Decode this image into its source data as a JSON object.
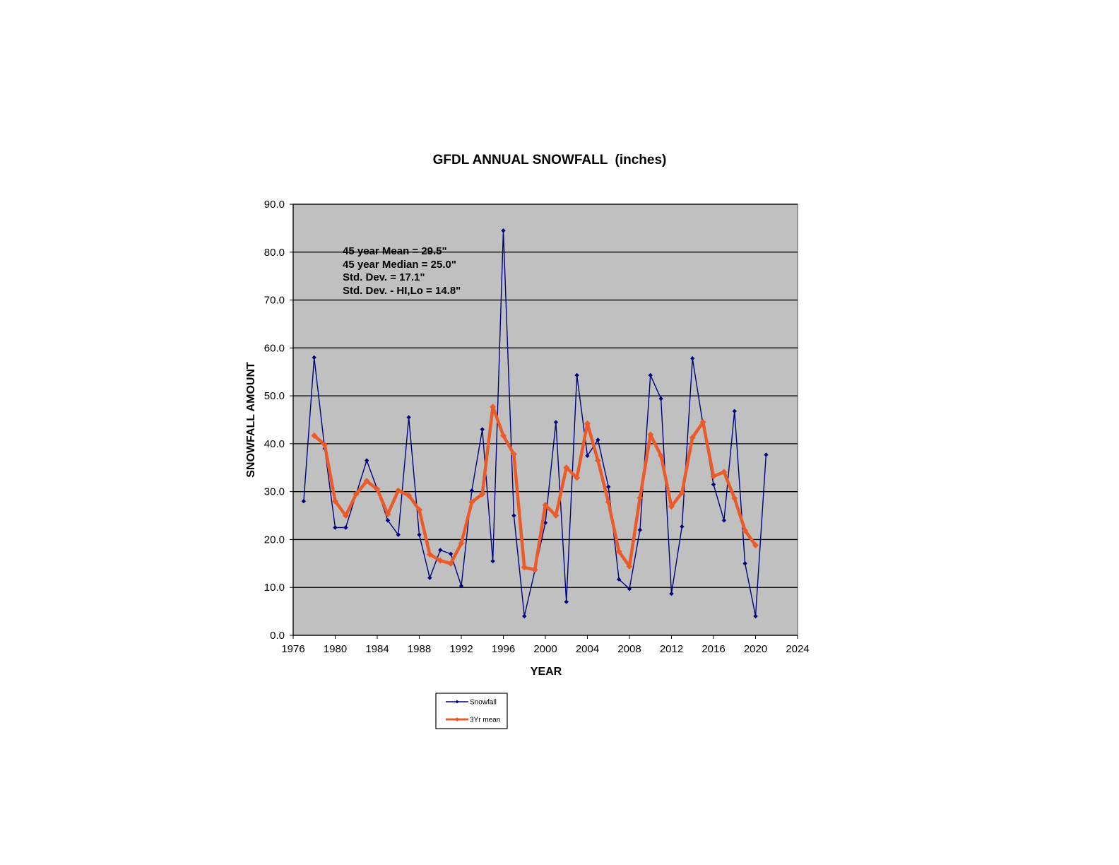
{
  "chart_data": {
    "type": "line",
    "title": "GFDL ANNUAL SNOWFALL  (inches)",
    "xlabel": "YEAR",
    "ylabel": "SNOWFALL AMOUNT",
    "xlim": [
      1976,
      2024
    ],
    "ylim": [
      0,
      90
    ],
    "x_ticks": [
      "1976",
      "1980",
      "1984",
      "1988",
      "1992",
      "1996",
      "2000",
      "2004",
      "2008",
      "2012",
      "2016",
      "2020",
      "2024"
    ],
    "y_ticks": [
      "0.0",
      "10.0",
      "20.0",
      "30.0",
      "40.0",
      "50.0",
      "60.0",
      "70.0",
      "80.0",
      "90.0"
    ],
    "grid": "horizontal",
    "plot_background": "#c0c0c0",
    "legend_position": "bottom-center",
    "annotations": [
      "45 year Mean = 29.5\"",
      "45 year Median = 25.0\"",
      "Std. Dev. = 17.1\"",
      "Std. Dev. - HI,Lo = 14.8\""
    ],
    "series": [
      {
        "name": "Snowfall",
        "color": "#000080",
        "x": [
          1977,
          1978,
          1979,
          1980,
          1981,
          1982,
          1983,
          1984,
          1985,
          1986,
          1987,
          1988,
          1989,
          1990,
          1991,
          1992,
          1993,
          1994,
          1995,
          1996,
          1997,
          1998,
          1999,
          2000,
          2001,
          2002,
          2003,
          2004,
          2005,
          2006,
          2007,
          2008,
          2009,
          2010,
          2011,
          2012,
          2013,
          2014,
          2015,
          2016,
          2017,
          2018,
          2019,
          2020,
          2021
        ],
        "values": [
          28.0,
          58.0,
          39.0,
          22.5,
          22.5,
          29.5,
          36.5,
          30.5,
          24.0,
          21.0,
          45.5,
          21.0,
          12.0,
          17.8,
          17.0,
          10.3,
          30.2,
          43.0,
          15.5,
          84.5,
          25.0,
          4.0,
          13.5,
          23.5,
          44.5,
          7.0,
          54.3,
          37.5,
          40.8,
          31.0,
          11.7,
          9.7,
          22.0,
          54.3,
          49.4,
          8.7,
          22.7,
          57.8,
          44.0,
          31.5,
          24.0,
          46.8,
          15.0,
          4.0,
          37.7
        ]
      },
      {
        "name": "3Yr mean",
        "color": "#ea5b29",
        "x": [
          1978,
          1979,
          1980,
          1981,
          1982,
          1983,
          1984,
          1985,
          1986,
          1987,
          1988,
          1989,
          1990,
          1991,
          1992,
          1993,
          1994,
          1995,
          1996,
          1997,
          1998,
          1999,
          2000,
          2001,
          2002,
          2003,
          2004,
          2005,
          2006,
          2007,
          2008,
          2009,
          2010,
          2011,
          2012,
          2013,
          2014,
          2015,
          2016,
          2017,
          2018,
          2019,
          2020
        ],
        "values": [
          41.7,
          39.8,
          28.0,
          25.0,
          29.5,
          32.2,
          30.5,
          25.3,
          30.2,
          29.2,
          26.2,
          16.9,
          15.6,
          15.0,
          19.2,
          27.8,
          29.5,
          47.7,
          41.7,
          37.8,
          14.2,
          13.7,
          27.2,
          25.0,
          35.0,
          32.9,
          44.2,
          36.5,
          27.8,
          17.5,
          14.4,
          28.7,
          41.9,
          37.5,
          26.9,
          29.8,
          41.3,
          44.5,
          33.2,
          34.1,
          28.6,
          21.9,
          18.8
        ]
      }
    ]
  }
}
